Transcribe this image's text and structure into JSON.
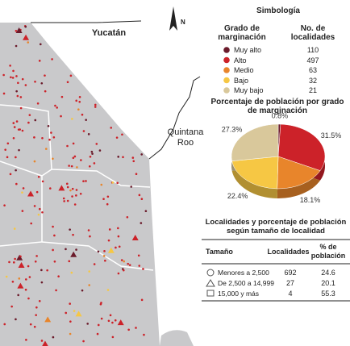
{
  "map": {
    "north": "N",
    "labels": [
      "Yucatán",
      "Quintana Roo"
    ]
  },
  "legend": {
    "title": "Simbología",
    "headers": [
      "Grado de marginación",
      "No. de localidades"
    ],
    "counts": [
      110,
      497,
      63,
      32,
      21
    ]
  },
  "chart_data": {
    "type": "pie",
    "title": "Porcentaje de población por grado de marginación",
    "categories": [
      "Muy alto",
      "Alto",
      "Medio",
      "Bajo",
      "Muy bajo"
    ],
    "values": [
      0.8,
      31.5,
      18.1,
      22.4,
      27.3
    ],
    "value_labels": [
      "0.8%",
      "31.5%",
      "18.1%",
      "22.4%",
      "27.3%"
    ],
    "colors": [
      "#6b1b2b",
      "#cc2229",
      "#e8852b",
      "#f6c744",
      "#d9c89b"
    ]
  },
  "table": {
    "title": "Localidades y porcentaje de población según tamaño de localidad",
    "headers": [
      "Tamaño",
      "Localidades",
      "% de población"
    ],
    "rows": [
      [
        "Menores a 2,500",
        692,
        24.6
      ],
      [
        "De 2,500 a 14,999",
        27,
        20.1
      ],
      [
        "15,000 y más",
        4,
        55.3
      ]
    ]
  }
}
